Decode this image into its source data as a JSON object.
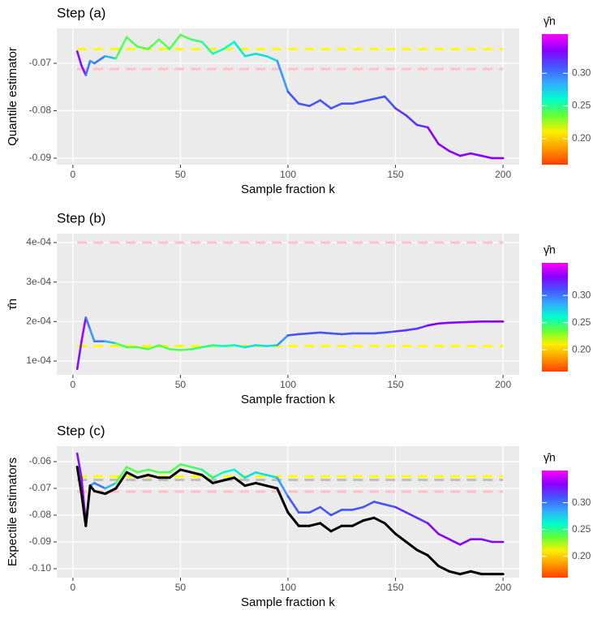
{
  "chart_data": [
    {
      "type": "line",
      "title": "Step (a)",
      "x_label": "Sample fraction k",
      "y_label": "Quantile estimator",
      "grid": true,
      "x": [
        2,
        4,
        6,
        8,
        10,
        15,
        20,
        25,
        30,
        35,
        40,
        45,
        50,
        55,
        60,
        65,
        70,
        75,
        80,
        85,
        90,
        95,
        100,
        105,
        110,
        115,
        120,
        125,
        130,
        135,
        140,
        145,
        150,
        155,
        160,
        165,
        170,
        175,
        180,
        185,
        190,
        195,
        200
      ],
      "xlim": [
        -7.5,
        207.5
      ],
      "xticks": [
        0,
        50,
        100,
        150,
        200
      ],
      "ylim": [
        -0.09137,
        -0.06265
      ],
      "yticks": [
        -0.09,
        -0.08,
        -0.07
      ],
      "series": [
        {
          "values": [
            -0.0675,
            -0.0705,
            -0.0725,
            -0.0695,
            -0.07,
            -0.0685,
            -0.069,
            -0.0645,
            -0.0665,
            -0.067,
            -0.065,
            -0.067,
            -0.064,
            -0.065,
            -0.0655,
            -0.068,
            -0.067,
            -0.0655,
            -0.0685,
            -0.068,
            -0.0685,
            -0.0695,
            -0.076,
            -0.0785,
            -0.079,
            -0.0778,
            -0.0795,
            -0.0785,
            -0.0785,
            -0.078,
            -0.0775,
            -0.077,
            -0.0795,
            -0.081,
            -0.083,
            -0.0835,
            -0.087,
            -0.0885,
            -0.0895,
            -0.089,
            -0.0895,
            -0.09,
            -0.09
          ],
          "color_values": [
            0.165,
            0.33,
            0.34,
            0.3,
            0.29,
            0.3,
            0.28,
            0.24,
            0.24,
            0.24,
            0.24,
            0.24,
            0.24,
            0.24,
            0.245,
            0.25,
            0.255,
            0.26,
            0.265,
            0.27,
            0.27,
            0.27,
            0.29,
            0.31,
            0.31,
            0.31,
            0.31,
            0.31,
            0.31,
            0.31,
            0.31,
            0.31,
            0.31,
            0.32,
            0.32,
            0.32,
            0.335,
            0.335,
            0.335,
            0.335,
            0.335,
            0.335,
            0.335
          ]
        }
      ],
      "hlines": [
        {
          "value": -0.067,
          "color": "#ffff00"
        },
        {
          "value": -0.0712,
          "color": "#ffc0cb"
        }
      ],
      "colorbar": {
        "title": "γ̂n",
        "lim": [
          0.16,
          0.36
        ],
        "ticks": [
          {
            "value": 0.2,
            "label": "0.20"
          },
          0.25,
          {
            "value": 0.3,
            "label": "0.30"
          }
        ],
        "colors": [
          "#ff4000",
          "#ff9900",
          "#ffee00",
          "#66ff33",
          "#00ffcc",
          "#33aaff",
          "#4455ff",
          "#8800ff",
          "#ff00ff"
        ]
      }
    },
    {
      "type": "line",
      "title": "Step (b)",
      "x_label": "Sample fraction k",
      "y_label": "τ̂n",
      "grid": true,
      "x": [
        2,
        4,
        6,
        8,
        10,
        15,
        20,
        25,
        30,
        35,
        40,
        45,
        50,
        55,
        60,
        65,
        70,
        75,
        80,
        85,
        90,
        95,
        100,
        105,
        110,
        115,
        120,
        125,
        130,
        135,
        140,
        145,
        150,
        155,
        160,
        165,
        170,
        175,
        180,
        185,
        190,
        195,
        200
      ],
      "xlim": [
        -7.5,
        207.5
      ],
      "xticks": [
        0,
        50,
        100,
        150,
        200
      ],
      "ylim": [
        6.51e-05,
        0.0004226
      ],
      "yticks": [
        {
          "value": 0.0001,
          "label": "1e-04"
        },
        {
          "value": 0.0002,
          "label": "2e-04"
        },
        {
          "value": 0.0003,
          "label": "3e-04"
        },
        {
          "value": 0.0004,
          "label": "4e-04"
        }
      ],
      "series": [
        {
          "values": [
            8e-05,
            0.00015,
            0.00021,
            0.00018,
            0.00015,
            0.00015,
            0.000145,
            0.000135,
            0.000135,
            0.00013,
            0.00014,
            0.00013,
            0.000128,
            0.00013,
            0.000135,
            0.00014,
            0.000138,
            0.00014,
            0.000135,
            0.00014,
            0.000138,
            0.00014,
            0.000165,
            0.000168,
            0.00017,
            0.000172,
            0.00017,
            0.000168,
            0.00017,
            0.00017,
            0.00017,
            0.000172,
            0.000175,
            0.000178,
            0.000182,
            0.00019,
            0.000195,
            0.000197,
            0.000198,
            0.000199,
            0.0002,
            0.0002,
            0.0002
          ],
          "color_values": [
            0.165,
            0.33,
            0.34,
            0.3,
            0.29,
            0.3,
            0.28,
            0.24,
            0.24,
            0.24,
            0.24,
            0.24,
            0.24,
            0.24,
            0.245,
            0.25,
            0.255,
            0.26,
            0.265,
            0.27,
            0.27,
            0.27,
            0.29,
            0.31,
            0.31,
            0.31,
            0.31,
            0.31,
            0.31,
            0.31,
            0.31,
            0.31,
            0.31,
            0.32,
            0.32,
            0.32,
            0.335,
            0.335,
            0.335,
            0.335,
            0.335,
            0.335,
            0.335
          ]
        }
      ],
      "hlines": [
        {
          "value": 0.0004,
          "color": "#ffc0cb"
        },
        {
          "value": 0.000138,
          "color": "#ffff00"
        }
      ],
      "colorbar": {
        "title": "γ̂n",
        "lim": [
          0.16,
          0.36
        ],
        "ticks": [
          {
            "value": 0.2,
            "label": "0.20"
          },
          0.25,
          {
            "value": 0.3,
            "label": "0.30"
          }
        ],
        "colors": [
          "#ff4000",
          "#ff9900",
          "#ffee00",
          "#66ff33",
          "#00ffcc",
          "#33aaff",
          "#4455ff",
          "#8800ff",
          "#ff00ff"
        ]
      }
    },
    {
      "type": "line",
      "title": "Step (c)",
      "x_label": "Sample fraction k",
      "y_label": "Expectile estimators",
      "grid": true,
      "x": [
        2,
        4,
        6,
        8,
        10,
        15,
        20,
        25,
        30,
        35,
        40,
        45,
        50,
        55,
        60,
        65,
        70,
        75,
        80,
        85,
        90,
        95,
        100,
        105,
        110,
        115,
        120,
        125,
        130,
        135,
        140,
        145,
        150,
        155,
        160,
        165,
        170,
        175,
        180,
        185,
        190,
        195,
        200
      ],
      "xlim": [
        -7.5,
        207.5
      ],
      "xticks": [
        0,
        50,
        100,
        150,
        200
      ],
      "ylim": [
        -0.10333,
        -0.05424
      ],
      "yticks": [
        {
          "value": -0.1,
          "label": "-0.10"
        },
        -0.09,
        -0.08,
        -0.07,
        -0.06
      ],
      "series": [
        {
          "values": [
            -0.057,
            -0.066,
            -0.083,
            -0.069,
            -0.068,
            -0.07,
            -0.068,
            -0.062,
            -0.064,
            -0.063,
            -0.064,
            -0.064,
            -0.061,
            -0.062,
            -0.063,
            -0.066,
            -0.064,
            -0.063,
            -0.066,
            -0.064,
            -0.065,
            -0.066,
            -0.073,
            -0.079,
            -0.079,
            -0.077,
            -0.08,
            -0.078,
            -0.078,
            -0.077,
            -0.075,
            -0.076,
            -0.077,
            -0.079,
            -0.081,
            -0.083,
            -0.087,
            -0.089,
            -0.091,
            -0.089,
            -0.089,
            -0.09,
            -0.09
          ],
          "color_values": [
            0.165,
            0.33,
            0.34,
            0.3,
            0.29,
            0.3,
            0.28,
            0.24,
            0.24,
            0.24,
            0.24,
            0.24,
            0.24,
            0.24,
            0.245,
            0.25,
            0.255,
            0.26,
            0.265,
            0.27,
            0.27,
            0.27,
            0.29,
            0.31,
            0.31,
            0.31,
            0.31,
            0.31,
            0.31,
            0.31,
            0.31,
            0.31,
            0.31,
            0.32,
            0.32,
            0.32,
            0.335,
            0.335,
            0.335,
            0.335,
            0.335,
            0.335,
            0.335
          ]
        },
        {
          "color": "#000000",
          "values": [
            -0.062,
            -0.072,
            -0.084,
            -0.069,
            -0.071,
            -0.072,
            -0.07,
            -0.064,
            -0.066,
            -0.065,
            -0.066,
            -0.066,
            -0.063,
            -0.064,
            -0.065,
            -0.068,
            -0.067,
            -0.066,
            -0.069,
            -0.068,
            -0.069,
            -0.07,
            -0.079,
            -0.084,
            -0.084,
            -0.083,
            -0.086,
            -0.084,
            -0.084,
            -0.082,
            -0.081,
            -0.083,
            -0.087,
            -0.09,
            -0.093,
            -0.095,
            -0.099,
            -0.101,
            -0.102,
            -0.101,
            -0.102,
            -0.102,
            -0.102
          ]
        }
      ],
      "hlines": [
        {
          "value": -0.0655,
          "color": "#ffff00"
        },
        {
          "value": -0.0668,
          "color": "#bebebe"
        },
        {
          "value": -0.0712,
          "color": "#ffc0cb"
        }
      ],
      "colorbar": {
        "title": "γ̂n",
        "lim": [
          0.16,
          0.36
        ],
        "ticks": [
          {
            "value": 0.2,
            "label": "0.20"
          },
          0.25,
          {
            "value": 0.3,
            "label": "0.30"
          }
        ],
        "colors": [
          "#ff4000",
          "#ff9900",
          "#ffee00",
          "#66ff33",
          "#00ffcc",
          "#33aaff",
          "#4455ff",
          "#8800ff",
          "#ff00ff"
        ]
      }
    }
  ]
}
